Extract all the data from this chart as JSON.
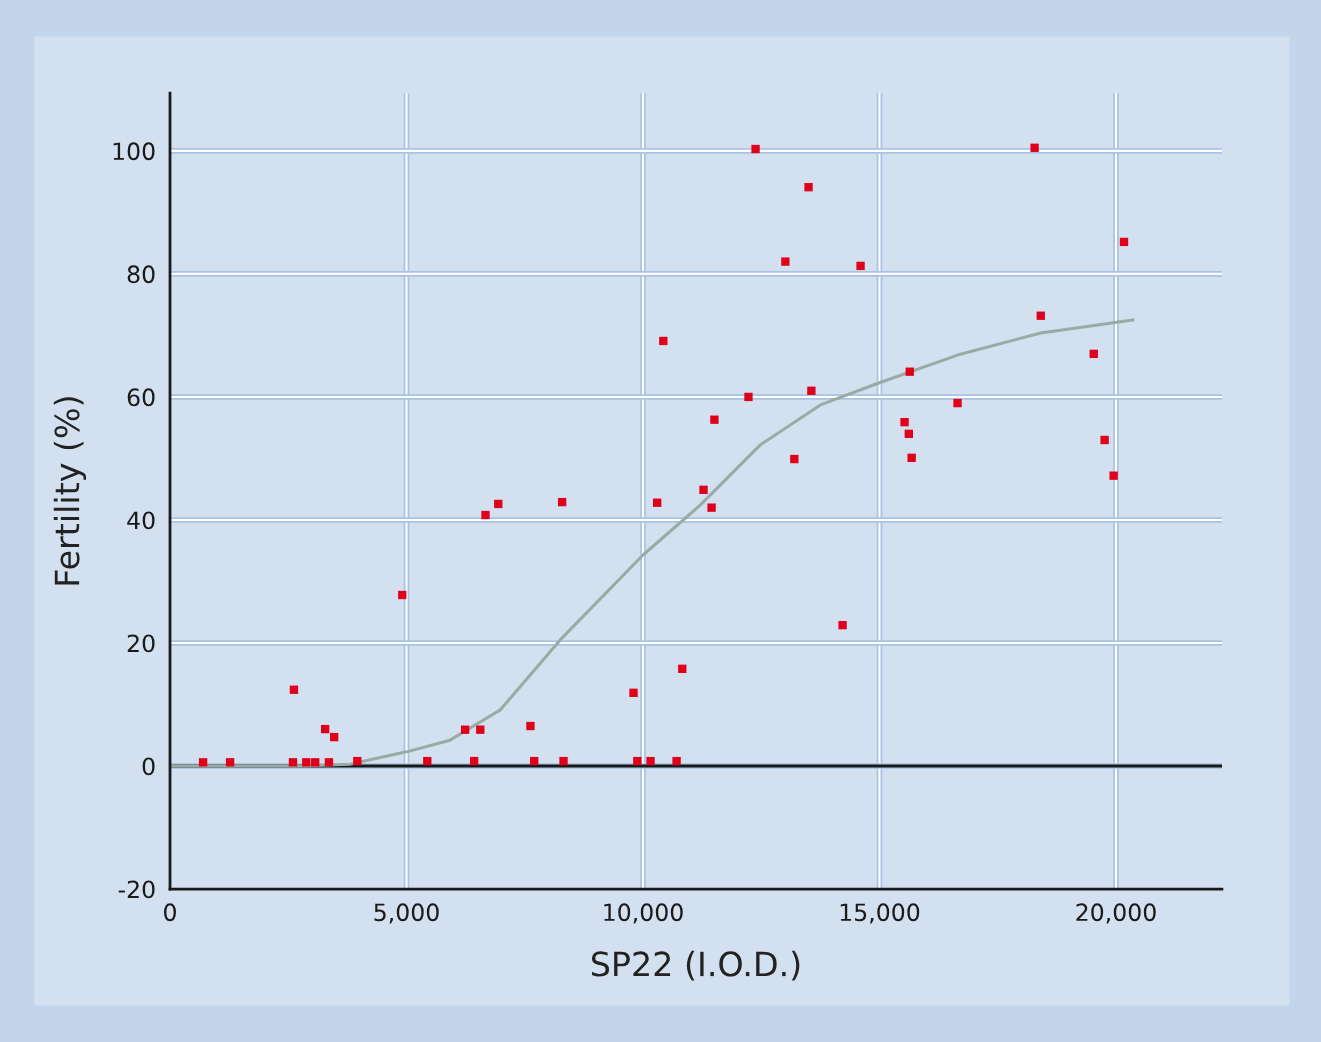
{
  "chart_data": {
    "type": "scatter",
    "xlabel": "SP22 (I.O.D.)",
    "ylabel": "Fertility (%)",
    "xlim": [
      0,
      22240
    ],
    "ylim": [
      -20,
      109.4
    ],
    "xticks": [
      0,
      {
        "value": 5000,
        "label": "5,000"
      },
      {
        "value": 10000,
        "label": "10,000"
      },
      {
        "value": 15000,
        "label": "15,000"
      },
      {
        "value": 20000,
        "label": "20,000"
      }
    ],
    "yticks": [
      -20,
      0,
      20,
      40,
      60,
      80,
      100
    ],
    "grid": true,
    "marker": "square",
    "ref_lines": [
      {
        "axis": "y",
        "value": 0,
        "label": null,
        "color": "#1a1a1a"
      }
    ],
    "series": [
      {
        "color": "#e0001a",
        "x": [
          700,
          1270,
          2620,
          2600,
          2880,
          3070,
          3280,
          3360,
          3470,
          3960,
          4910,
          5440,
          6240,
          6430,
          6560,
          6670,
          6940,
          7620,
          7700,
          8290,
          8320,
          9800,
          9880,
          10160,
          10300,
          10430,
          10710,
          10830,
          11280,
          11450,
          11510,
          12230,
          12380,
          13010,
          13200,
          13500,
          13560,
          14220,
          14600,
          15530,
          15620,
          15640,
          15680,
          16650,
          18280,
          18410,
          19530,
          19760,
          19950,
          20170
        ],
        "values": [
          0.6,
          0.6,
          12.4,
          0.6,
          0.6,
          0.6,
          6.0,
          0.6,
          4.7,
          0.8,
          27.8,
          0.8,
          5.9,
          0.8,
          5.9,
          40.8,
          42.6,
          6.5,
          0.8,
          42.9,
          0.8,
          11.9,
          0.8,
          0.8,
          42.8,
          69.1,
          0.8,
          15.8,
          44.9,
          42.0,
          56.3,
          60.0,
          100.3,
          82.0,
          49.9,
          94.1,
          61.0,
          22.9,
          81.3,
          55.9,
          54.0,
          64.1,
          50.1,
          59.0,
          100.5,
          73.2,
          67.0,
          53.0,
          47.2,
          85.2
        ]
      },
      {
        "type": "line",
        "color": "#9aaba6",
        "marker": "none",
        "line_style": "solid",
        "x": [
          0,
          2750,
          3800,
          5000,
          5920,
          6980,
          8250,
          10000,
          11210,
          12480,
          13750,
          15000,
          16650,
          18410,
          20360
        ],
        "values": [
          0,
          0,
          0.3,
          2.3,
          4.2,
          9.1,
          20.5,
          34.3,
          42.4,
          52.2,
          58.7,
          62.3,
          66.8,
          70.4,
          72.5
        ]
      }
    ]
  }
}
